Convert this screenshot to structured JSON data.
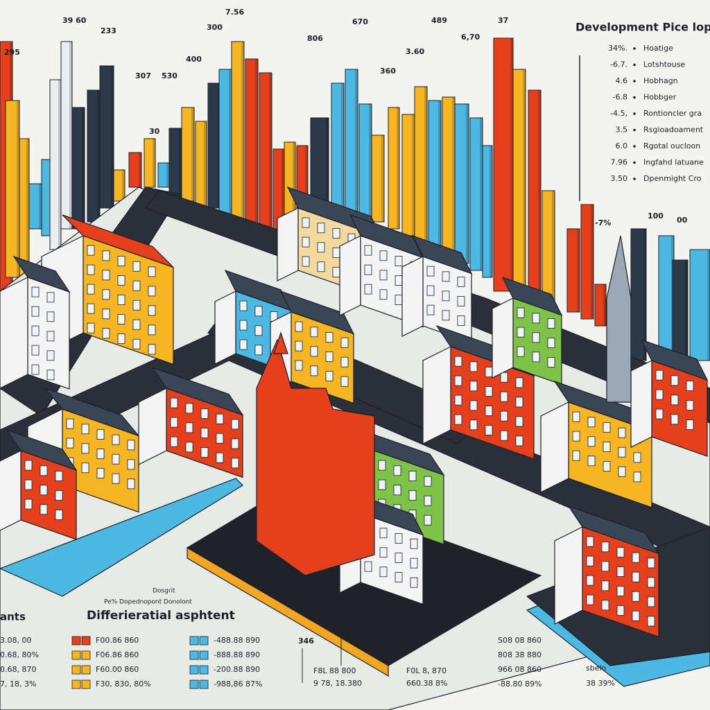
{
  "header": {
    "title": "Development Pice lop"
  },
  "legend": {
    "items": [
      {
        "value": "34%.",
        "label": "Hoatige"
      },
      {
        "value": "-6.7.",
        "label": "Lotshtouse"
      },
      {
        "value": "4.6",
        "label": "Hobhagn"
      },
      {
        "value": "-6.8",
        "label": "Hobbger"
      },
      {
        "value": "-4.5,",
        "label": "Rontioncler gra"
      },
      {
        "value": "3.5",
        "label": "Rsgioadoament"
      },
      {
        "value": "6.0",
        "label": "Rgotal oucloon"
      },
      {
        "value": "7.96",
        "label": "Ingfahd latuane"
      },
      {
        "value": "3.50",
        "label": "Dpenmight Cro"
      }
    ]
  },
  "bar_labels": [
    "295",
    "39 60",
    "233",
    "7.56",
    "300",
    "307",
    "530",
    "400",
    "30",
    "806",
    "670",
    "3.60",
    "360",
    "489",
    "6,70",
    "37",
    "100",
    "00",
    "-7%"
  ],
  "bottom": {
    "caption": "Dosgrit",
    "subcaption": "Pe% Dopednopont Donolont",
    "heading": "Differieratial asphtent",
    "left_heading": "ants",
    "side_label": "346",
    "columns": [
      [
        "3.08, 00",
        "0.68, 80%",
        "0.68, 870",
        "7, 18, 3%"
      ],
      [
        "F00.86 860",
        "F06.86 860",
        "F60.00 860",
        "F30, 830, 80%"
      ],
      [
        "-488.88 890",
        "-888.88 890",
        "-200.88 890",
        "-988,86 87%"
      ],
      [
        "F8L 88 800",
        "9 78, 18.380"
      ],
      [
        "F0L 8, 870",
        "660.38 8%"
      ],
      [
        "S08 08 860",
        "808 38 880",
        "966 08 860",
        "-88.80 89%"
      ],
      [
        "sbelo",
        "38 39%"
      ]
    ]
  }
}
